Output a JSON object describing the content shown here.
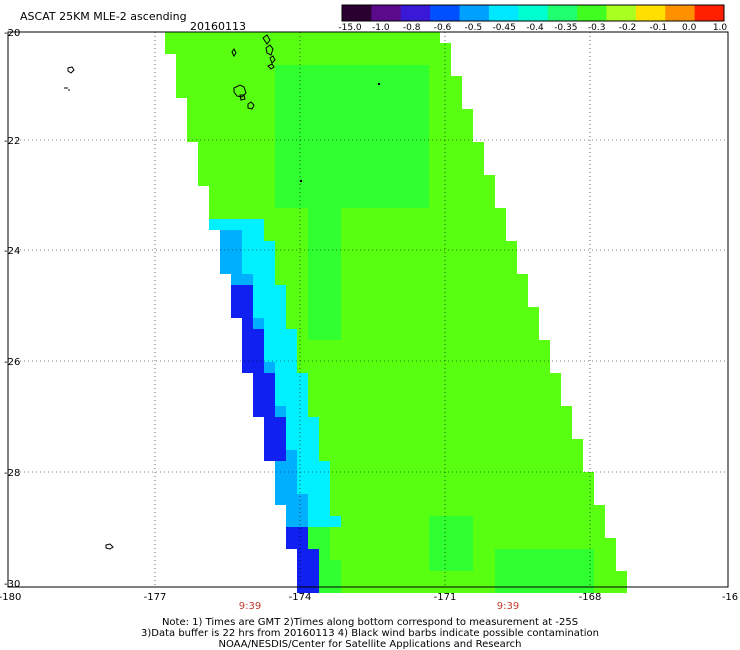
{
  "header": {
    "title": "ASCAT 25KM MLE-2 ascending",
    "date": "20160113"
  },
  "colorbar": {
    "labels": [
      "-15.0",
      "-1.0",
      "-0.8",
      "-0.6",
      "-0.5",
      "-0.45",
      "-0.4",
      "-0.35",
      "-0.3",
      "-0.2",
      "-0.1",
      "0.0",
      "1.0"
    ],
    "colors": [
      "#2a0030",
      "#5a0a8a",
      "#3a18d8",
      "#0050ff",
      "#00a0ff",
      "#00e8ff",
      "#00ffd0",
      "#20ff70",
      "#40ff20",
      "#a8ff20",
      "#ffe000",
      "#ff9000",
      "#ff2000"
    ]
  },
  "axes": {
    "y_ticks": [
      "-20",
      "-22",
      "-24",
      "-26",
      "-28",
      "-30"
    ],
    "x_ticks": [
      "-180",
      "-177",
      "-174",
      "-171",
      "-168",
      "-16"
    ],
    "time_labels": [
      "9:39",
      "9:39"
    ]
  },
  "notes": {
    "line1": "Note: 1) Times are GMT 2)Times along bottom correspond to measurement at -25S",
    "line2": "3)Data buffer is 22 hrs from 20160113 4) Black wind barbs indicate possible contamination",
    "line3": "NOAA/NESDIS/Center for Satellite Applications and Research"
  },
  "map": {
    "swath_colors": {
      "main": "#58ff10",
      "green": "#30ff30",
      "cyan": "#00f0ff",
      "light_blue": "#00b0ff",
      "blue": "#1020f0",
      "purple": "#4010a0"
    },
    "features": [
      "swath",
      "islands",
      "gridlines"
    ]
  }
}
